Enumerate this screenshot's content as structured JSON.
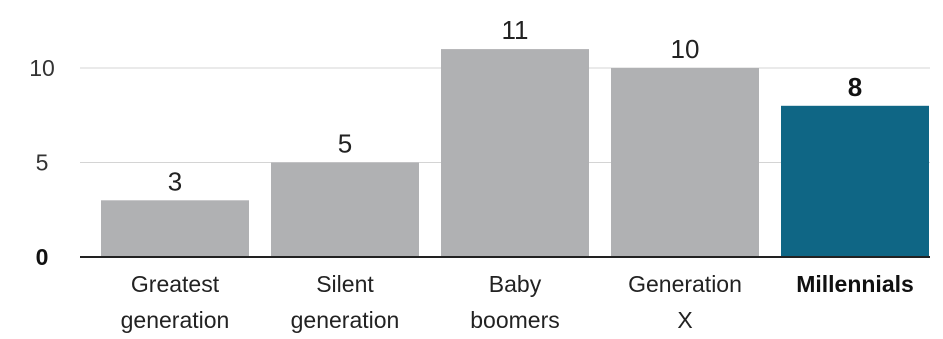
{
  "chart_data": {
    "type": "bar",
    "categories": [
      [
        "Greatest",
        "generation"
      ],
      [
        "Silent",
        "generation"
      ],
      [
        "Baby",
        "boomers"
      ],
      [
        "Generation",
        "X"
      ],
      [
        "Millennials"
      ]
    ],
    "values": [
      3,
      5,
      11,
      10,
      8
    ],
    "data_labels": [
      "3",
      "5",
      "11",
      "10",
      "8"
    ],
    "highlight_index": 4,
    "colors": {
      "default_bar": "#b0b1b3",
      "highlight_bar": "#0f6685",
      "gridline": "#d4d4d4",
      "baseline": "#222222"
    },
    "y_ticks": [
      {
        "value": 0,
        "label": "0"
      },
      {
        "value": 5,
        "label": "5"
      },
      {
        "value": 10,
        "label": "10"
      }
    ],
    "ylim": [
      0,
      11.5
    ],
    "grid": true,
    "legend": "none",
    "title": "",
    "xlabel": "",
    "ylabel": ""
  }
}
